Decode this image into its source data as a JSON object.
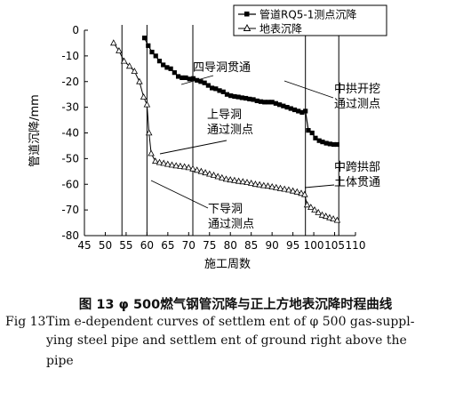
{
  "chart_data": {
    "type": "line",
    "xlabel": "施工周数",
    "ylabel": "管道沉降/mm",
    "xlim": [
      45,
      110
    ],
    "ylim": [
      -80,
      0
    ],
    "xticks": [
      "45",
      "50",
      "55",
      "60",
      "65",
      "70",
      "75",
      "80",
      "85",
      "90",
      "95",
      "100",
      "105",
      "110"
    ],
    "yticks": [
      "0",
      "-10",
      "-20",
      "-30",
      "-40",
      "-50",
      "-60",
      "-70",
      "-80"
    ],
    "grid": false,
    "legend_position": "top-right",
    "vlines": [
      54,
      60,
      71,
      98,
      106
    ],
    "series": [
      {
        "name": "管道RQ5-1测点沉降",
        "marker": "square",
        "x": [
          59.4,
          60.3,
          61.2,
          62.1,
          63.0,
          63.9,
          64.8,
          65.7,
          66.6,
          67.5,
          68.4,
          69.3,
          70.2,
          71.1,
          72.0,
          72.9,
          73.8,
          74.7,
          75.6,
          76.5,
          77.4,
          78.3,
          79.2,
          80.1,
          81.0,
          81.9,
          82.8,
          83.7,
          84.6,
          85.5,
          86.4,
          87.3,
          88.2,
          89.1,
          90.0,
          90.9,
          91.8,
          92.7,
          93.6,
          94.5,
          95.4,
          96.3,
          97.2,
          98.0,
          98.7,
          99.6,
          100.4,
          101.3,
          102.1,
          103.0,
          103.9,
          104.8,
          105.6
        ],
        "y": [
          -3,
          -6,
          -8.5,
          -10,
          -12,
          -13.5,
          -14.5,
          -15,
          -16.5,
          -18,
          -18.5,
          -18.5,
          -19,
          -18.8,
          -19.5,
          -20,
          -20.5,
          -21.5,
          -22.5,
          -22.8,
          -23.5,
          -24,
          -25,
          -25.5,
          -25.8,
          -26,
          -26.3,
          -26.5,
          -26.8,
          -27,
          -27.5,
          -27.8,
          -28,
          -28,
          -28,
          -28.5,
          -29,
          -29.5,
          -30,
          -30.5,
          -31,
          -31.5,
          -32,
          -31.5,
          -39,
          -40,
          -42,
          -43,
          -43.5,
          -44,
          -44.3,
          -44.5,
          -44.5
        ]
      },
      {
        "name": "地表沉降",
        "marker": "triangle",
        "x": [
          52,
          53.3,
          54.5,
          55.8,
          57,
          58.2,
          59.2,
          60.0,
          60.5,
          61,
          62,
          63,
          64,
          65,
          66,
          67,
          68,
          69,
          70,
          71,
          72,
          73,
          74,
          75,
          76,
          77,
          78,
          79,
          80,
          81,
          82,
          83,
          84,
          85,
          86,
          87,
          88,
          89,
          90,
          91,
          92,
          93,
          94,
          95,
          96,
          97,
          97.8,
          98.4,
          99.3,
          100.2,
          101.1,
          102,
          102.9,
          103.8,
          104.7,
          105.6
        ],
        "y": [
          -5,
          -8,
          -12,
          -14,
          -16,
          -20,
          -26,
          -29,
          -40,
          -48,
          -51,
          -51.5,
          -51.8,
          -52.2,
          -52.5,
          -52.8,
          -53,
          -53.2,
          -53.5,
          -54,
          -54.5,
          -55,
          -55.5,
          -56,
          -56.5,
          -57,
          -57.5,
          -58,
          -58.3,
          -58.5,
          -58.8,
          -59,
          -59.3,
          -59.6,
          -60,
          -60.2,
          -60.5,
          -60.7,
          -61,
          -61.3,
          -61.6,
          -61.9,
          -62.2,
          -62.6,
          -63,
          -63.5,
          -64,
          -68,
          -69,
          -70,
          -71,
          -72,
          -72.5,
          -73,
          -73.5,
          -74
        ]
      }
    ],
    "annotations": [
      {
        "lines": [
          "四导洞贯通"
        ]
      },
      {
        "lines": [
          "中拱开挖",
          "通过测点"
        ]
      },
      {
        "lines": [
          "上导洞",
          "通过测点"
        ]
      },
      {
        "lines": [
          "中跨拱部",
          "土体贯通"
        ]
      },
      {
        "lines": [
          "下导洞",
          "通过测点"
        ]
      }
    ]
  },
  "caption": {
    "zh": "图 13    φ 500燃气钢管沉降与正上方地表沉降时程曲线",
    "en_label": "Fig  13",
    "en_line1": "Tim e-dependent curves of settlem ent of φ 500 gas-suppl-",
    "en_line2": "ying steel pipe and settlem ent of ground right above the",
    "en_line3": "pipe"
  }
}
